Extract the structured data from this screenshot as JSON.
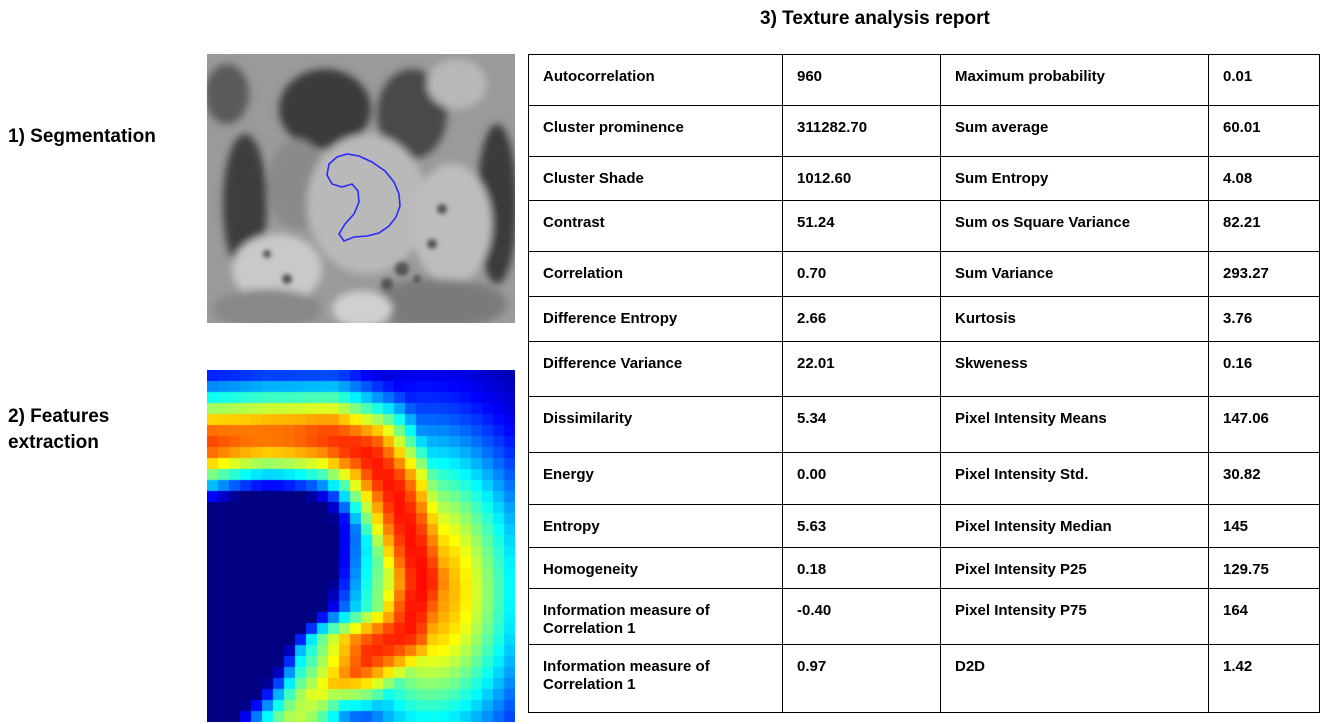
{
  "steps": {
    "segmentation": "1) Segmentation",
    "features_line1": "2) Features",
    "features_line2": "extraction",
    "report_title": "3) Texture analysis report"
  },
  "colors": {
    "contour": "#2a2aff",
    "table_border": "#000000"
  },
  "heatmap": {
    "colormap": "jet",
    "description_icon": "feature-heatmap"
  },
  "table": {
    "rows": [
      {
        "f1": "Autocorrelation",
        "v1": "960",
        "f2": "Maximum probability",
        "v2": "0.01"
      },
      {
        "f1": "Cluster prominence",
        "v1": "311282.70",
        "f2": "Sum average",
        "v2": "60.01"
      },
      {
        "f1": "Cluster Shade",
        "v1": "1012.60",
        "f2": "Sum Entropy",
        "v2": "4.08"
      },
      {
        "f1": "Contrast",
        "v1": "51.24",
        "f2": "Sum os Square Variance",
        "v2": "82.21"
      },
      {
        "f1": "Correlation",
        "v1": "0.70",
        "f2": "Sum Variance",
        "v2": "293.27"
      },
      {
        "f1": "Difference Entropy",
        "v1": "2.66",
        "f2": "Kurtosis",
        "v2": "3.76"
      },
      {
        "f1": "Difference Variance",
        "v1": "22.01",
        "f2": "Skweness",
        "v2": "0.16"
      },
      {
        "f1": "Dissimilarity",
        "v1": "5.34",
        "f2": "Pixel Intensity Means",
        "v2": "147.06"
      },
      {
        "f1": "Energy",
        "v1": "0.00",
        "f2": "Pixel Intensity Std.",
        "v2": "30.82"
      },
      {
        "f1": "Entropy",
        "v1": "5.63",
        "f2": "Pixel Intensity Median",
        "v2": "145"
      },
      {
        "f1": "Homogeneity",
        "v1": "0.18",
        "f2": "Pixel Intensity P25",
        "v2": "129.75"
      },
      {
        "f1": "Information measure of Correlation 1",
        "v1": "-0.40",
        "f2": "Pixel Intensity P75",
        "v2": "164"
      },
      {
        "f1": "Information measure of Correlation 1",
        "v1": "0.97",
        "f2": "D2D",
        "v2": "1.42"
      }
    ]
  }
}
